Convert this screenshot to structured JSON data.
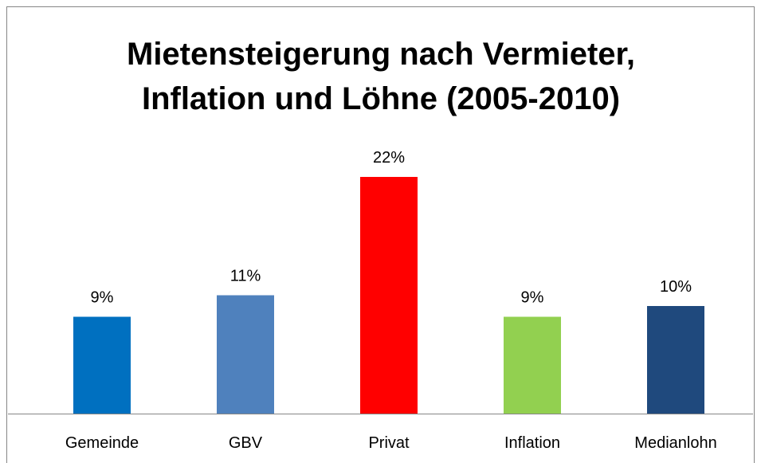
{
  "chart_data": {
    "type": "bar",
    "title": "Mietensteigerung nach Vermieter, Inflation und Löhne (2005-2010)",
    "categories": [
      "Gemeinde",
      "GBV",
      "Privat",
      "Inflation",
      "Medianlohn"
    ],
    "values": [
      9,
      11,
      22,
      9,
      10
    ],
    "value_labels": [
      "9%",
      "11%",
      "22%",
      "9%",
      "10%"
    ],
    "colors": [
      "#0070c0",
      "#4f81bd",
      "#ff0000",
      "#92d050",
      "#1f497d"
    ]
  }
}
